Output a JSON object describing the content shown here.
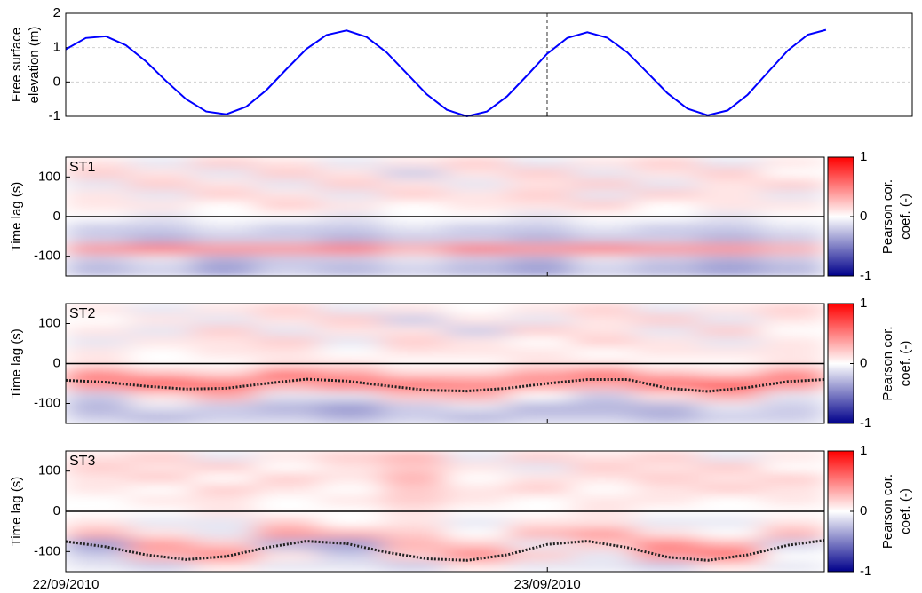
{
  "chart_data": [
    {
      "type": "line",
      "ylabel": [
        "Free surface",
        "elevation (m)"
      ],
      "x": [
        0,
        1,
        2,
        3,
        4,
        5,
        6,
        7,
        8,
        9,
        10,
        11,
        12,
        13,
        14,
        15,
        16,
        17,
        18,
        19,
        20,
        21,
        22,
        23,
        24,
        25,
        26,
        27,
        28,
        29,
        30,
        31,
        32,
        33,
        34,
        35,
        36,
        37,
        37.9
      ],
      "values": [
        0.95,
        1.28,
        1.33,
        1.07,
        0.6,
        0.03,
        -0.5,
        -0.86,
        -0.94,
        -0.72,
        -0.24,
        0.37,
        0.96,
        1.37,
        1.5,
        1.31,
        0.86,
        0.25,
        -0.36,
        -0.81,
        -1.0,
        -0.86,
        -0.42,
        0.19,
        0.82,
        1.28,
        1.45,
        1.29,
        0.86,
        0.27,
        -0.33,
        -0.78,
        -0.97,
        -0.83,
        -0.37,
        0.28,
        0.92,
        1.38,
        1.52
      ],
      "color": "#0000ff",
      "xlim": [
        0,
        42.2
      ],
      "xticks": [
        0,
        24
      ],
      "ylim": [
        -1,
        2
      ],
      "yticks": [
        -1,
        0,
        1,
        2
      ],
      "grid": true
    },
    {
      "type": "heatmap",
      "label": "ST1",
      "ylabel": "Time lag (s)",
      "xlim": [
        0,
        37.8
      ],
      "xticks": [
        0,
        24
      ],
      "ylim": [
        -150,
        150
      ],
      "yticks": [
        -100,
        0,
        100
      ],
      "z": [
        [
          0.1,
          -0.1,
          0.2,
          0.1,
          -0.1,
          0.1,
          0.2,
          -0.1,
          0.1,
          0.2,
          -0.1,
          0.1
        ],
        [
          0.2,
          0.1,
          -0.1,
          0.2,
          0.1,
          -0.2,
          0.1,
          0.2,
          -0.1,
          0.1,
          0.2,
          0.0
        ],
        [
          -0.1,
          0.2,
          0.1,
          -0.1,
          0.2,
          0.1,
          -0.1,
          0.1,
          0.2,
          -0.1,
          0.1,
          0.2
        ],
        [
          0.1,
          -0.1,
          0.2,
          0.1,
          -0.1,
          0.2,
          0.1,
          0.2,
          -0.1,
          0.2,
          0.1,
          -0.1
        ],
        [
          0.1,
          0.1,
          0.0,
          0.2,
          0.1,
          0.0,
          0.1,
          0.1,
          0.2,
          0.0,
          0.1,
          0.1
        ],
        [
          0.0,
          -0.1,
          0.0,
          0.0,
          -0.1,
          0.0,
          0.0,
          -0.1,
          0.0,
          0.0,
          -0.1,
          0.0
        ],
        [
          -0.2,
          -0.2,
          -0.1,
          -0.2,
          -0.2,
          -0.1,
          -0.2,
          -0.2,
          -0.1,
          -0.2,
          -0.2,
          -0.1
        ],
        [
          -0.2,
          -0.3,
          -0.2,
          -0.2,
          -0.3,
          -0.2,
          -0.2,
          -0.3,
          -0.2,
          -0.2,
          -0.3,
          -0.2
        ],
        [
          0.4,
          0.5,
          0.4,
          0.4,
          0.5,
          0.3,
          0.5,
          0.4,
          0.5,
          0.4,
          0.4,
          0.3
        ],
        [
          -0.2,
          -0.1,
          -0.3,
          -0.2,
          -0.2,
          -0.1,
          -0.2,
          -0.3,
          -0.1,
          -0.2,
          -0.3,
          -0.2
        ],
        [
          -0.3,
          -0.2,
          -0.4,
          -0.2,
          -0.3,
          -0.2,
          -0.3,
          -0.4,
          -0.2,
          -0.3,
          -0.4,
          -0.3
        ]
      ],
      "clim": [
        -1,
        1
      ],
      "cticks": [
        -1,
        0,
        1
      ],
      "cmap": [
        "#00008b",
        "#ffffff",
        "#ff0000"
      ],
      "colorbar_label": [
        "Pearson cor.",
        "coef. (-)"
      ]
    },
    {
      "type": "heatmap",
      "label": "ST2",
      "ylabel": "Time lag (s)",
      "xlim": [
        0,
        37.8
      ],
      "xticks": [
        0,
        24
      ],
      "ylim": [
        -150,
        150
      ],
      "yticks": [
        -100,
        0,
        100
      ],
      "z": [
        [
          0.1,
          -0.1,
          0.1,
          0.2,
          -0.1,
          0.1,
          0.0,
          0.1,
          0.2,
          -0.1,
          0.1,
          0.2
        ],
        [
          0.0,
          0.1,
          -0.1,
          0.1,
          0.2,
          -0.2,
          0.1,
          -0.1,
          0.1,
          0.2,
          -0.1,
          0.1
        ],
        [
          0.1,
          -0.1,
          0.2,
          -0.1,
          0.1,
          0.1,
          -0.2,
          0.2,
          0.1,
          -0.1,
          0.2,
          0.0
        ],
        [
          -0.1,
          0.1,
          0.1,
          0.2,
          -0.1,
          0.2,
          0.1,
          0.0,
          0.2,
          0.1,
          -0.1,
          0.1
        ],
        [
          0.1,
          0.0,
          0.1,
          0.1,
          0.0,
          0.1,
          0.1,
          0.1,
          0.0,
          0.1,
          0.1,
          0.1
        ],
        [
          0.1,
          0.0,
          0.0,
          0.1,
          0.1,
          0.0,
          0.0,
          0.1,
          0.1,
          0.0,
          0.0,
          0.1
        ],
        [
          0.5,
          0.3,
          0.2,
          0.6,
          0.4,
          0.2,
          0.2,
          0.4,
          0.6,
          0.3,
          0.2,
          0.5
        ],
        [
          0.4,
          0.7,
          0.6,
          0.3,
          0.5,
          0.6,
          0.5,
          0.4,
          0.3,
          0.6,
          0.7,
          0.4
        ],
        [
          -0.2,
          0.1,
          0.3,
          -0.1,
          -0.1,
          0.2,
          0.3,
          0.0,
          -0.2,
          0.1,
          0.3,
          -0.1
        ],
        [
          -0.3,
          -0.1,
          -0.2,
          -0.3,
          -0.4,
          -0.2,
          -0.1,
          -0.3,
          -0.3,
          -0.3,
          -0.1,
          -0.2
        ],
        [
          -0.2,
          -0.3,
          -0.2,
          -0.2,
          -0.3,
          -0.2,
          -0.3,
          -0.2,
          -0.2,
          -0.3,
          -0.2,
          -0.2
        ]
      ],
      "series": [
        {
          "color": "#222222",
          "x": [
            0,
            2,
            4,
            6,
            8,
            10,
            12,
            14,
            16,
            18,
            20,
            22,
            24,
            26,
            28,
            30,
            32,
            34,
            36,
            37.8
          ],
          "values": [
            -42,
            -47,
            -57,
            -64,
            -62,
            -50,
            -39,
            -44,
            -56,
            -67,
            -69,
            -62,
            -50,
            -40,
            -40,
            -62,
            -70,
            -60,
            -45,
            -40
          ]
        }
      ],
      "clim": [
        -1,
        1
      ],
      "cticks": [
        -1,
        0,
        1
      ],
      "cmap": [
        "#00008b",
        "#ffffff",
        "#ff0000"
      ],
      "colorbar_label": [
        "Pearson cor.",
        "coef. (-)"
      ]
    },
    {
      "type": "heatmap",
      "label": "ST3",
      "ylabel": "Time lag (s)",
      "xlim": [
        0,
        37.8
      ],
      "xticks": [
        {
          "value": 0,
          "label": "22/09/2010"
        },
        {
          "value": 24,
          "label": "23/09/2010"
        }
      ],
      "ylim": [
        -150,
        150
      ],
      "yticks": [
        -100,
        0,
        100
      ],
      "z": [
        [
          0.1,
          0.2,
          -0.1,
          0.1,
          0.2,
          0.3,
          -0.1,
          0.2,
          0.1,
          0.2,
          -0.1,
          0.1
        ],
        [
          0.2,
          0.1,
          0.2,
          0.0,
          0.1,
          0.2,
          0.1,
          -0.1,
          0.2,
          0.1,
          0.2,
          0.0
        ],
        [
          0.1,
          0.2,
          0.0,
          0.2,
          0.1,
          0.3,
          0.0,
          0.1,
          0.1,
          0.2,
          0.1,
          0.2
        ],
        [
          0.1,
          0.0,
          0.2,
          0.1,
          0.0,
          0.2,
          0.1,
          0.2,
          0.0,
          0.1,
          0.2,
          0.1
        ],
        [
          0.0,
          0.1,
          0.1,
          0.0,
          0.1,
          0.2,
          0.1,
          0.0,
          0.1,
          0.1,
          0.0,
          0.1
        ],
        [
          0.0,
          0.0,
          0.1,
          0.0,
          0.0,
          0.1,
          0.0,
          0.0,
          0.1,
          0.0,
          0.0,
          0.0
        ],
        [
          0.1,
          -0.1,
          -0.1,
          0.2,
          0.0,
          0.1,
          -0.1,
          0.1,
          0.1,
          -0.1,
          -0.1,
          0.1
        ],
        [
          0.3,
          0.1,
          -0.1,
          0.4,
          0.3,
          0.2,
          0.0,
          0.3,
          0.4,
          0.1,
          0.0,
          0.3
        ],
        [
          -0.4,
          0.4,
          0.2,
          -0.3,
          -0.4,
          0.3,
          0.2,
          -0.1,
          0.2,
          0.5,
          0.3,
          -0.2
        ],
        [
          -0.2,
          0.3,
          0.5,
          0.1,
          -0.2,
          0.2,
          0.5,
          0.2,
          -0.1,
          0.4,
          0.6,
          0.0
        ],
        [
          -0.1,
          -0.2,
          0.1,
          -0.1,
          -0.1,
          -0.2,
          0.1,
          -0.1,
          -0.1,
          -0.2,
          0.1,
          -0.1
        ]
      ],
      "series": [
        {
          "color": "#222222",
          "x": [
            0,
            2,
            4,
            6,
            8,
            10,
            12,
            14,
            16,
            18,
            20,
            22,
            24,
            26,
            28,
            30,
            32,
            34,
            36,
            37.8
          ],
          "values": [
            -75,
            -88,
            -108,
            -120,
            -112,
            -90,
            -74,
            -80,
            -102,
            -118,
            -122,
            -108,
            -82,
            -74,
            -90,
            -114,
            -122,
            -108,
            -84,
            -72
          ]
        }
      ],
      "clim": [
        -1,
        1
      ],
      "cticks": [
        -1,
        0,
        1
      ],
      "cmap": [
        "#00008b",
        "#ffffff",
        "#ff0000"
      ],
      "colorbar_label": [
        "Pearson cor.",
        "coef. (-)"
      ]
    }
  ]
}
